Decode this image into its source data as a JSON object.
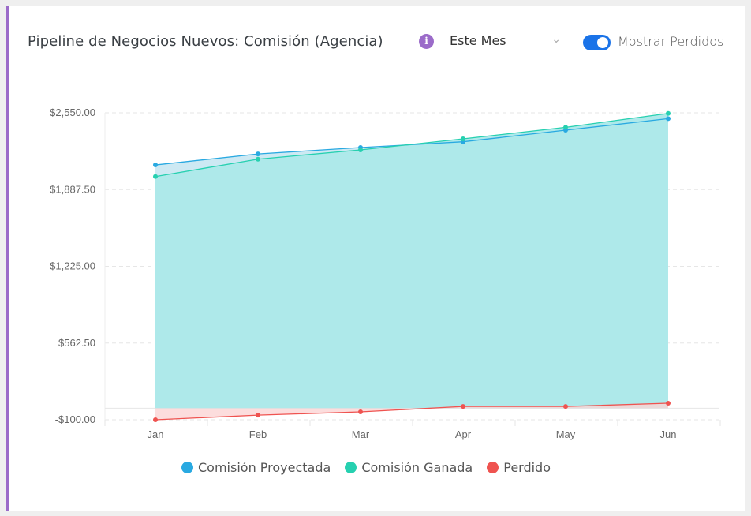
{
  "header": {
    "title": "Pipeline de Negocios Nuevos: Comisión (Agencia)",
    "info_icon": "info-icon",
    "period_select": "Este Mes",
    "toggle_label": "Mostrar Perdidos",
    "toggle_on": true
  },
  "colors": {
    "accent": "#9b6bc9",
    "toggle": "#1a73e8",
    "proyectada": "#29a9e1",
    "ganada": "#26d0b0",
    "perdido": "#ef5350"
  },
  "chart_data": {
    "type": "area",
    "categories": [
      "Jan",
      "Feb",
      "Mar",
      "Apr",
      "May",
      "Jun"
    ],
    "ylim": [
      -100,
      2550
    ],
    "yticks": [
      "$2,550.00",
      "$1,887.50",
      "$1,225.00",
      "$562.50",
      "-$100.00"
    ],
    "ytick_values": [
      2550,
      1887.5,
      1225,
      562.5,
      -100
    ],
    "grid": true,
    "legend_position": "bottom",
    "series": [
      {
        "name": "Comisión Proyectada",
        "values": [
          2100,
          2195,
          2250,
          2300,
          2400,
          2500
        ]
      },
      {
        "name": "Comisión Ganada",
        "values": [
          2000,
          2150,
          2230,
          2325,
          2425,
          2545
        ]
      },
      {
        "name": "Perdido",
        "values": [
          -100,
          -60,
          -32,
          15,
          15,
          43
        ]
      }
    ]
  }
}
